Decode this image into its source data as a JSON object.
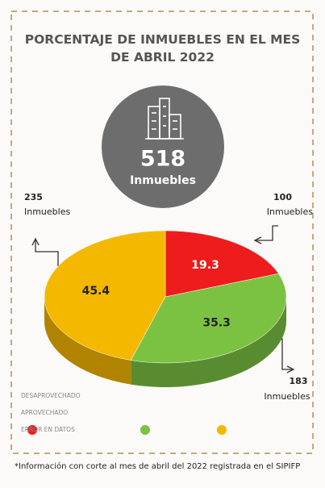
{
  "chart_data": {
    "type": "pie",
    "title": "PORCENTAJE DE INMUEBLES EN EL MES DE ABRIL 2022",
    "total": 518,
    "unit": "Inmuebles",
    "categories": [
      "DESAPROVECHADO",
      "APROVECHADO",
      "ERROR EN DATOS"
    ],
    "values": [
      19.3,
      35.3,
      45.4
    ],
    "counts": [
      100,
      183,
      235
    ],
    "colors": [
      "#ee1c1c",
      "#7cc242",
      "#f5b800"
    ],
    "footnote": "*Información con corte al mes de abril del 2022 registrada en el SIPIFP"
  }
}
